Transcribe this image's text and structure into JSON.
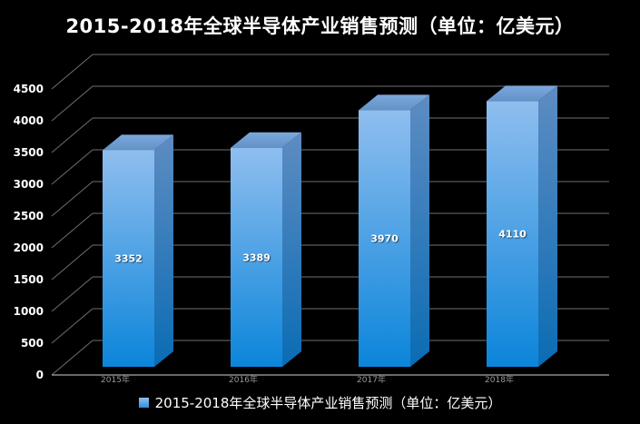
{
  "title": "2015-2018年全球半导体产业销售预测（单位：亿美元）",
  "legend": {
    "label": "2015-2018年全球半导体产业销售预测（单位：亿美元）"
  },
  "chart_data": {
    "type": "bar",
    "style": "3d-column",
    "title": "2015-2018年全球半导体产业销售预测（单位：亿美元）",
    "categories": [
      "2015年",
      "2016年",
      "2017年",
      "2018年"
    ],
    "series": [
      {
        "name": "2015-2018年全球半导体产业销售预测（单位：亿美元）",
        "values": [
          3352,
          3389,
          3970,
          4110
        ]
      }
    ],
    "ylim": [
      0,
      4500
    ],
    "ytick_interval": 500,
    "yticks": [
      0,
      500,
      1000,
      1500,
      2000,
      2500,
      3000,
      3500,
      4000,
      4500
    ],
    "grid": true,
    "data_labels": true,
    "legend_position": "bottom",
    "background": "#000000"
  },
  "colors": {
    "background": "#000000",
    "title_text": "#ffffff",
    "axis_label_text": "#ffffff",
    "category_label_text": "#989898",
    "data_label_text": "#ffffff",
    "gridline": "#6f6f6f",
    "axis_line": "#a8a8a8",
    "bar_front_top": "#8fbeef",
    "bar_front_bottom": "#0b85da",
    "bar_side_top": "#5e8cc2",
    "bar_side_bottom": "#0a6cb4",
    "bar_top_light": "#7ba8db",
    "bar_top_dark": "#6292c8",
    "legend_swatch_top": "#8fc0f0",
    "legend_swatch_bottom": "#2f8fde"
  }
}
